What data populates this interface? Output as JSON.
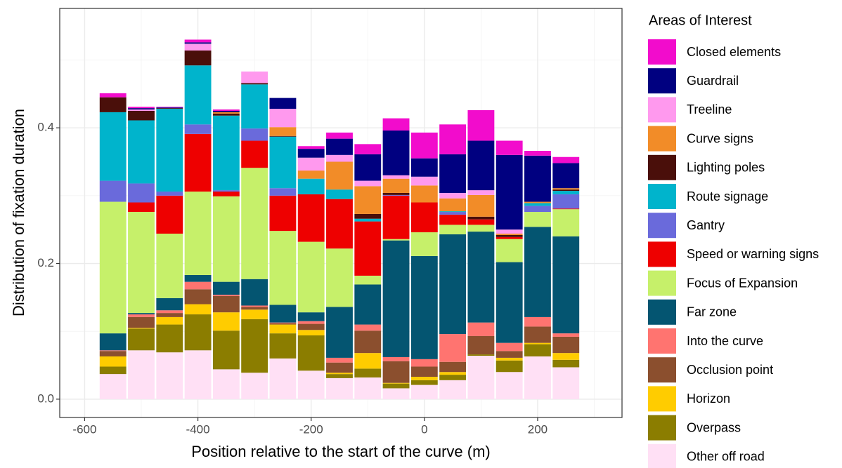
{
  "chart_data": {
    "type": "stacked_bar",
    "xlabel": "Position relative to the start of the curve (m)",
    "ylabel": "Distribution of fixation duration",
    "legend_title": "Areas of Interest",
    "legend_position": "right",
    "grid": true,
    "x": [
      -550,
      -500,
      -450,
      -400,
      -350,
      -300,
      -250,
      -200,
      -150,
      -100,
      -50,
      0,
      50,
      100,
      150,
      200,
      250
    ],
    "xlim": [
      -644,
      349
    ],
    "xticks": [
      -600,
      -400,
      -200,
      0,
      200
    ],
    "minor_xticks": [
      -500,
      -300,
      -100,
      100,
      300
    ],
    "ylim": [
      -0.027,
      0.576
    ],
    "yticks": [
      {
        "value": 0,
        "label": "0.0"
      },
      0.2,
      0.4
    ],
    "minor_yticks": [
      0.1,
      0.3,
      0.5
    ],
    "series": [
      {
        "name": "Closed elements",
        "color": "#f20ccc",
        "values": [
          0.006,
          0.002,
          0.001,
          0.004,
          0.002,
          0,
          0,
          0.004,
          0.009,
          0.015,
          0.018,
          0.038,
          0.044,
          0.045,
          0.021,
          0.007,
          0.009
        ]
      },
      {
        "name": "Guardrail",
        "color": "#000080",
        "values": [
          0,
          0.002,
          0.001,
          0.002,
          0.002,
          0,
          0.016,
          0.013,
          0.024,
          0.039,
          0.066,
          0.027,
          0.057,
          0.073,
          0.11,
          0.068,
          0.037
        ]
      },
      {
        "name": "Treeline",
        "color": "#ff99ee",
        "values": [
          0,
          0.002,
          0,
          0.01,
          0,
          0.017,
          0.027,
          0.019,
          0.01,
          0.008,
          0.005,
          0.013,
          0.008,
          0.007,
          0.006,
          0,
          0
        ]
      },
      {
        "name": "Curve signs",
        "color": "#f28c28",
        "values": [
          0,
          0,
          0,
          0,
          0.002,
          0,
          0.013,
          0.012,
          0.041,
          0.041,
          0.021,
          0.025,
          0.019,
          0.032,
          0.002,
          0.002,
          0.002
        ]
      },
      {
        "name": "Lighting poles",
        "color": "#4a0f0a",
        "values": [
          0.022,
          0.014,
          0.001,
          0.022,
          0.003,
          0.002,
          0.001,
          0,
          0,
          0.007,
          0.003,
          0,
          0,
          0.004,
          0.003,
          0,
          0.002
        ]
      },
      {
        "name": "Route signage",
        "color": "#00b4cc",
        "values": [
          0.101,
          0.093,
          0.122,
          0.087,
          0.11,
          0.065,
          0.076,
          0.023,
          0.014,
          0.004,
          0,
          0,
          0.001,
          0,
          0,
          0.004,
          0.005
        ]
      },
      {
        "name": "Gantry",
        "color": "#6a6adb",
        "values": [
          0.031,
          0.028,
          0.006,
          0.014,
          0.002,
          0.018,
          0.011,
          0,
          0,
          0,
          0.001,
          0,
          0.004,
          0,
          0,
          0.009,
          0.021
        ]
      },
      {
        "name": "Speed or warning signs",
        "color": "#ee0000",
        "values": [
          0,
          0.014,
          0.056,
          0.085,
          0.007,
          0.04,
          0.052,
          0.07,
          0.073,
          0.08,
          0.064,
          0.044,
          0.015,
          0.008,
          0.003,
          0,
          0.001
        ]
      },
      {
        "name": "Focus of Expansion",
        "color": "#c6f06a",
        "values": [
          0.194,
          0.149,
          0.095,
          0.123,
          0.126,
          0.164,
          0.109,
          0.104,
          0.086,
          0.013,
          0.002,
          0.035,
          0.014,
          0.01,
          0.034,
          0.022,
          0.04
        ]
      },
      {
        "name": "Far zone",
        "color": "#045571",
        "values": [
          0.025,
          0.002,
          0.018,
          0.01,
          0.019,
          0.039,
          0.026,
          0.013,
          0.075,
          0.059,
          0.172,
          0.152,
          0.147,
          0.134,
          0.119,
          0.133,
          0.143
        ]
      },
      {
        "name": "Into the curve",
        "color": "#ff7470",
        "values": [
          0.001,
          0.004,
          0.004,
          0.011,
          0.002,
          0.002,
          0.001,
          0.004,
          0.007,
          0.009,
          0.006,
          0.011,
          0.041,
          0.02,
          0.012,
          0.014,
          0.005
        ]
      },
      {
        "name": "Occlusion point",
        "color": "#8b4f2e",
        "values": [
          0.008,
          0.016,
          0.006,
          0.022,
          0.024,
          0.004,
          0.002,
          0.009,
          0.015,
          0.033,
          0.032,
          0.015,
          0.015,
          0.027,
          0.01,
          0.024,
          0.024
        ]
      },
      {
        "name": "Horizon",
        "color": "#ffcc00",
        "values": [
          0.015,
          0.001,
          0.011,
          0.015,
          0.027,
          0.014,
          0.013,
          0.008,
          0.002,
          0.023,
          0.001,
          0.005,
          0.004,
          0,
          0.004,
          0.002,
          0.01
        ]
      },
      {
        "name": "Overpass",
        "color": "#8b7d00",
        "values": [
          0.011,
          0.032,
          0.041,
          0.053,
          0.057,
          0.079,
          0.037,
          0.052,
          0.006,
          0.013,
          0.007,
          0.007,
          0.008,
          0.002,
          0.017,
          0.018,
          0.011
        ]
      },
      {
        "name": "Other off road",
        "color": "#ffe0f5",
        "values": [
          0.037,
          0.072,
          0.069,
          0.072,
          0.044,
          0.039,
          0.06,
          0.042,
          0.031,
          0.032,
          0.016,
          0.021,
          0.028,
          0.064,
          0.04,
          0.063,
          0.047
        ]
      }
    ]
  }
}
